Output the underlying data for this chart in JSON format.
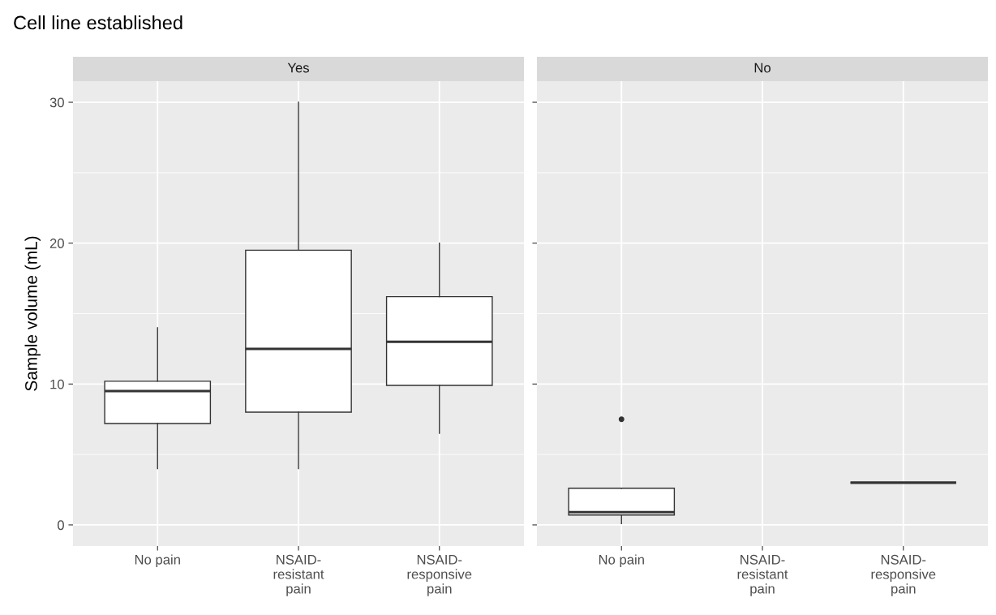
{
  "chart_data": [
    {
      "type": "box",
      "title": "Cell line established",
      "subtitle": "Yes",
      "ylabel": "Sample volume (mL)",
      "categories": [
        "No pain",
        "NSAID-\nresistant\npain",
        "NSAID-\nresponsive\npain"
      ],
      "boxes": [
        {
          "low": 4,
          "q1": 7.2,
          "median": 9.5,
          "q3": 10.2,
          "high": 14
        },
        {
          "low": 4,
          "q1": 8.0,
          "median": 12.5,
          "q3": 19.5,
          "high": 30
        },
        {
          "low": 6.5,
          "q1": 9.9,
          "median": 13.0,
          "q3": 16.2,
          "high": 20
        }
      ],
      "ylim": [
        -1.5,
        31.5
      ],
      "yticks": [
        0,
        10,
        20,
        30
      ],
      "grid": true
    },
    {
      "type": "box",
      "subtitle": "No",
      "categories": [
        "No pain",
        "NSAID-\nresistant\npain",
        "NSAID-\nresponsive\npain"
      ],
      "boxes": [
        {
          "low": 0.1,
          "q1": 0.7,
          "median": 0.9,
          "q3": 2.6,
          "high": 2.6,
          "outliers": [
            7.5
          ]
        },
        null,
        {
          "low": 3.0,
          "q1": 3.0,
          "median": 3.0,
          "q3": 3.0,
          "high": 3.0
        }
      ],
      "ylim": [
        -1.5,
        31.5
      ],
      "yticks": [
        0,
        10,
        20,
        30
      ],
      "grid": true,
      "tick_labels": "x"
    }
  ]
}
